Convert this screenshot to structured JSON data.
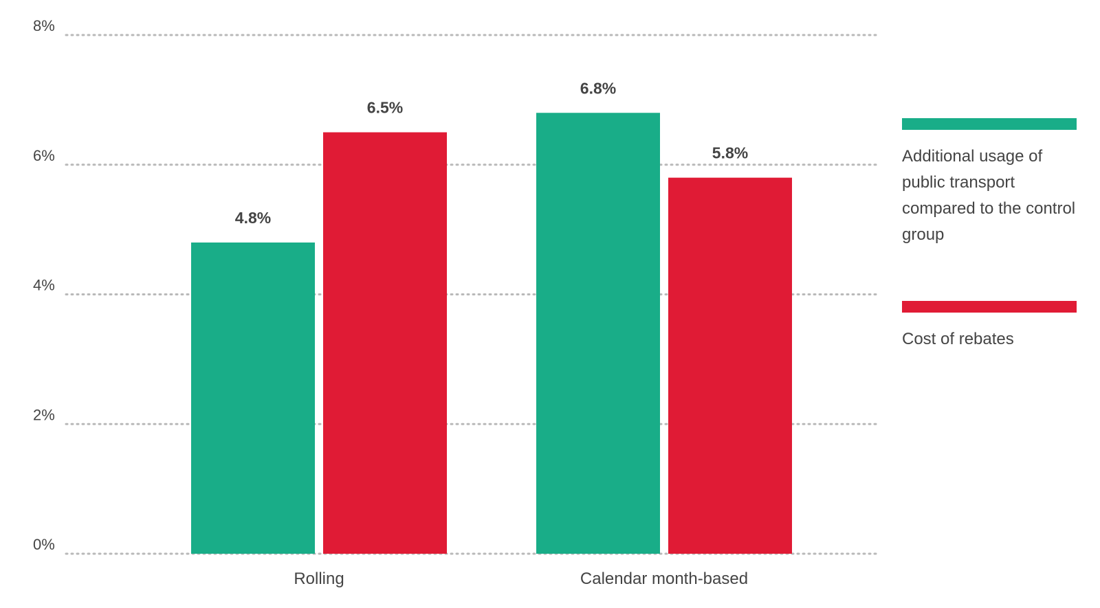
{
  "chart_data": {
    "type": "bar",
    "categories": [
      "Rolling",
      "Calendar month-based"
    ],
    "series": [
      {
        "name": "Additional usage of public transport compared to the control group",
        "values": [
          4.8,
          6.8
        ],
        "labels": [
          "4.8%",
          "6.8%"
        ],
        "color": "#19AD88"
      },
      {
        "name": "Cost of rebates",
        "values": [
          6.5,
          5.8
        ],
        "labels": [
          "6.5%",
          "5.8%"
        ],
        "color": "#E01B35"
      }
    ],
    "ylim": [
      0,
      8
    ],
    "yticks": [
      0,
      2,
      4,
      6,
      8
    ],
    "ytick_labels": [
      "0%",
      "2%",
      "4%",
      "6%",
      "8%"
    ],
    "grid": true,
    "legend_position": "right"
  }
}
